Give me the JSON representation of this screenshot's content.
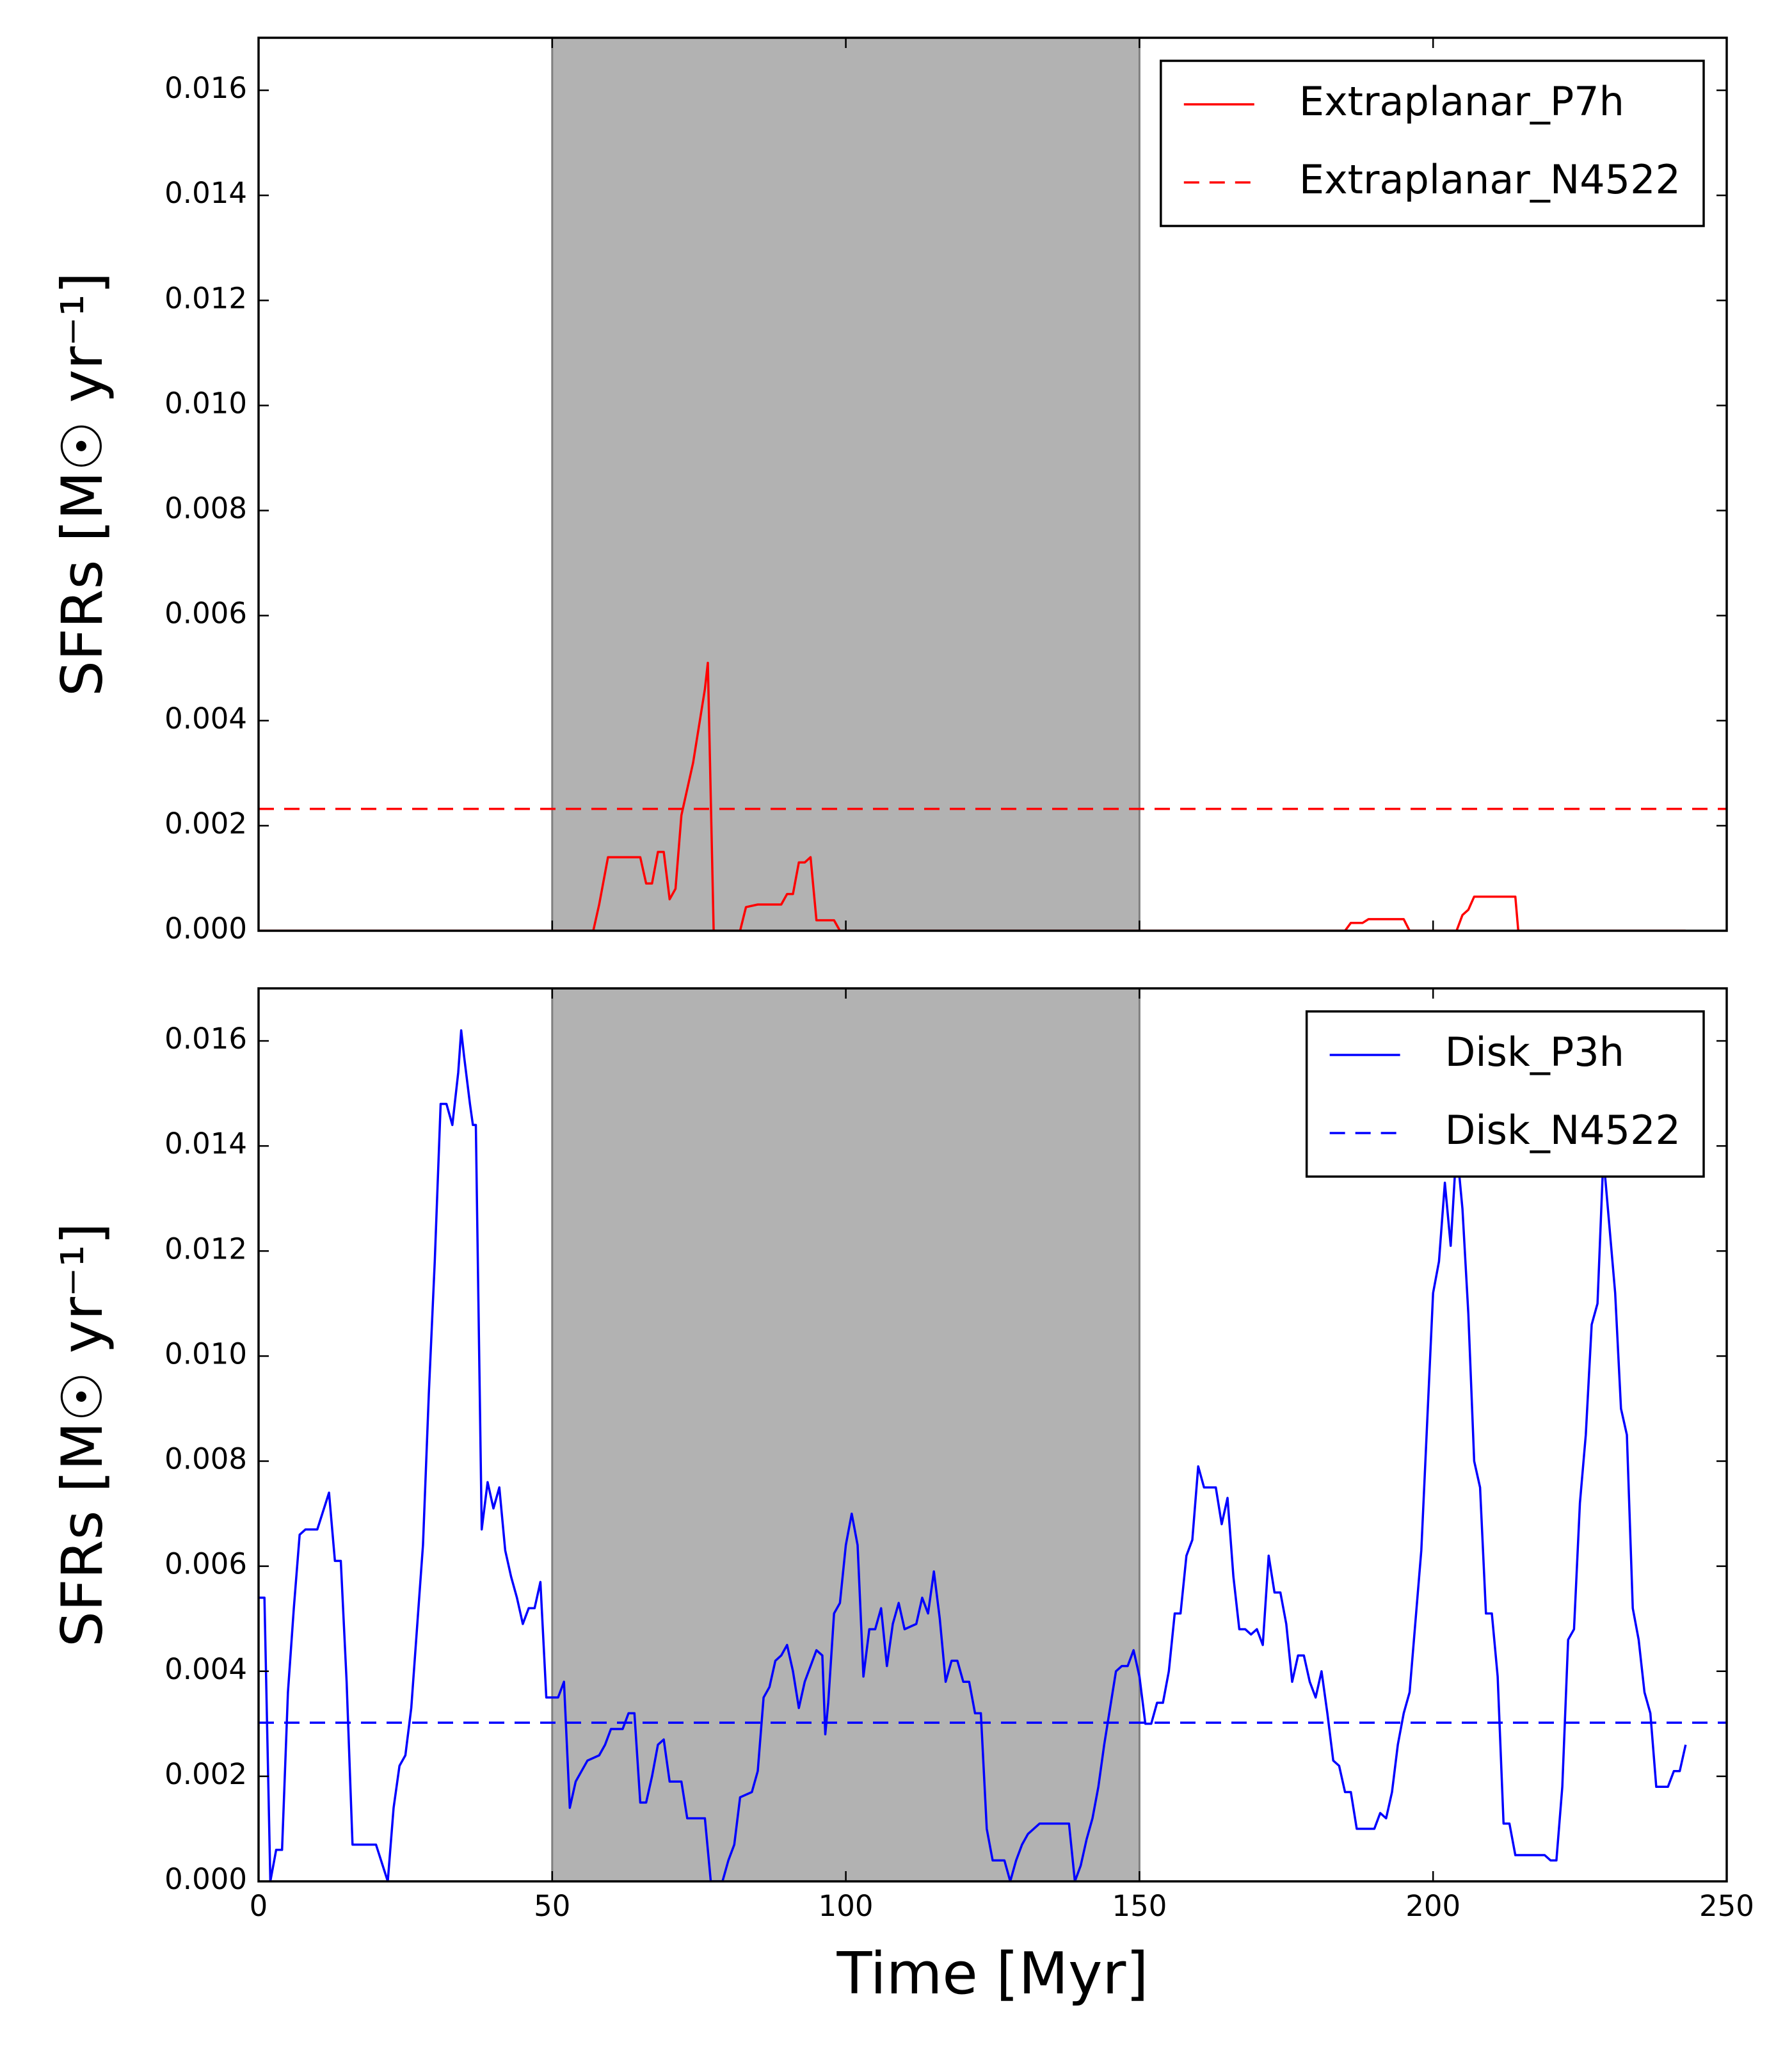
{
  "chart_data": [
    {
      "type": "line",
      "xlim": [
        0,
        250
      ],
      "ylim": [
        0,
        0.017
      ],
      "xticks": [
        0,
        50,
        100,
        150,
        200,
        250
      ],
      "xticklabels": false,
      "yticks": [
        {
          "value": 0,
          "label": "0.000"
        },
        0.002,
        0.004,
        0.006,
        0.008,
        {
          "value": 0.01,
          "label": "0.010"
        },
        0.012,
        0.014,
        0.016
      ],
      "ylabel": "SFRs [M☉ yr⁻¹]",
      "shade": {
        "xlim": [
          50,
          150
        ],
        "color": "#b2b2b2"
      },
      "legend": "upper right",
      "series": [
        {
          "name": "Extraplanar_P7h",
          "color": "#ff0000",
          "linestyle": "solid",
          "x": [
            0,
            57,
            58,
            59.5,
            65,
            66,
            67,
            68,
            69,
            70,
            71,
            72,
            74,
            76,
            76.5,
            77.5,
            82,
            83,
            85,
            89,
            90,
            91,
            92,
            93,
            94,
            95,
            98,
            99,
            185,
            186,
            188,
            189,
            195,
            196,
            204,
            205,
            206,
            207,
            214,
            214.5,
            243
          ],
          "values": [
            0,
            0,
            0.0005,
            0.0014,
            0.0014,
            0.0009,
            0.0009,
            0.0015,
            0.0015,
            0.0006,
            0.0008,
            0.0022,
            0.0032,
            0.0046,
            0.0051,
            0,
            0,
            0.00045,
            0.0005,
            0.0005,
            0.0007,
            0.0007,
            0.0013,
            0.0013,
            0.0014,
            0.0002,
            0.0002,
            0,
            0,
            0.00015,
            0.00015,
            0.00022,
            0.00022,
            0,
            0,
            0.0003,
            0.0004,
            0.00065,
            0.00065,
            0,
            0
          ]
        },
        {
          "name": "Extraplanar_N4522",
          "color": "#ff0000",
          "linestyle": "dashed",
          "hline": 0.00232
        }
      ]
    },
    {
      "type": "line",
      "xlim": [
        0,
        250
      ],
      "ylim": [
        0,
        0.017
      ],
      "xticks": [
        0,
        50,
        100,
        150,
        200,
        250
      ],
      "xticklabels": true,
      "yticks": [
        {
          "value": 0,
          "label": "0.000"
        },
        0.002,
        0.004,
        0.006,
        0.008,
        {
          "value": 0.01,
          "label": "0.010"
        },
        0.012,
        0.014,
        0.016
      ],
      "xlabel": "Time [Myr]",
      "ylabel": "SFRs [M☉ yr⁻¹]",
      "shade": {
        "xlim": [
          50,
          150
        ],
        "color": "#b2b2b2"
      },
      "legend": "upper right",
      "series": [
        {
          "name": "Disk_P3h",
          "color": "#0000ff",
          "linestyle": "solid",
          "x": [
            0,
            1,
            2,
            3,
            4,
            5,
            6,
            7,
            8,
            10,
            12,
            13,
            14,
            15,
            16,
            20,
            22,
            23,
            24,
            25,
            26,
            28,
            29,
            30,
            31,
            32,
            33,
            34,
            34.5,
            35,
            36,
            36.5,
            37,
            38,
            39,
            40,
            41,
            42,
            43,
            44,
            45,
            46,
            47,
            48,
            49,
            51,
            52,
            53,
            54,
            55,
            56,
            58,
            59,
            60,
            62,
            63,
            64,
            65,
            66,
            67,
            68,
            69,
            70,
            72,
            73,
            76,
            77,
            79,
            80,
            81,
            82,
            84,
            85,
            86,
            87,
            88,
            89,
            90,
            91,
            92,
            93,
            95,
            96,
            96.5,
            97,
            98,
            99,
            100,
            101,
            102,
            103,
            104,
            105,
            106,
            107,
            108,
            109,
            110,
            112,
            113,
            114,
            115,
            116,
            117,
            118,
            119,
            120,
            121,
            122,
            123,
            124,
            125,
            127,
            128,
            129,
            130,
            131,
            132,
            133,
            138,
            139,
            140,
            141,
            142,
            143,
            144,
            145,
            146,
            147,
            148,
            149,
            150,
            151,
            152,
            153,
            154,
            155,
            156,
            157,
            158,
            159,
            160,
            161,
            163,
            164,
            165,
            166,
            167,
            168,
            169,
            170,
            171,
            172,
            173,
            174,
            175,
            176,
            177,
            178,
            179,
            180,
            181,
            182,
            183,
            184,
            185,
            186,
            187,
            190,
            191,
            192,
            193,
            194,
            195,
            196,
            198,
            200,
            201,
            202,
            203,
            204,
            205,
            206,
            207,
            208,
            209,
            210,
            211,
            212,
            213,
            214,
            219,
            220,
            221,
            222,
            223,
            224,
            225,
            226,
            227,
            228,
            229,
            230,
            231,
            232,
            233,
            234,
            235,
            236,
            237,
            238,
            240,
            241,
            242,
            243
          ],
          "values": [
            0.0054,
            0.0054,
            0,
            0.0006,
            0.0006,
            0.0036,
            0.0052,
            0.0066,
            0.0067,
            0.0067,
            0.0074,
            0.0061,
            0.0061,
            0.0038,
            0.0007,
            0.0007,
            0,
            0.0014,
            0.0022,
            0.0024,
            0.0033,
            0.0064,
            0.0093,
            0.0118,
            0.0148,
            0.0148,
            0.0144,
            0.0154,
            0.0162,
            0.0157,
            0.0148,
            0.0144,
            0.0144,
            0.0067,
            0.0076,
            0.0071,
            0.0075,
            0.0063,
            0.0058,
            0.0054,
            0.0049,
            0.0052,
            0.0052,
            0.0057,
            0.0035,
            0.0035,
            0.0038,
            0.0014,
            0.0019,
            0.0021,
            0.0023,
            0.0024,
            0.0026,
            0.0029,
            0.0029,
            0.0032,
            0.0032,
            0.0015,
            0.0015,
            0.002,
            0.0026,
            0.0027,
            0.0019,
            0.0019,
            0.0012,
            0.0012,
            0,
            0,
            0.0004,
            0.0007,
            0.0016,
            0.0017,
            0.0021,
            0.0035,
            0.0037,
            0.0042,
            0.0043,
            0.0045,
            0.004,
            0.0033,
            0.0038,
            0.0044,
            0.0043,
            0.0028,
            0.0034,
            0.0051,
            0.0053,
            0.0064,
            0.007,
            0.0064,
            0.0039,
            0.0048,
            0.0048,
            0.0052,
            0.0041,
            0.0049,
            0.0053,
            0.0048,
            0.0049,
            0.0054,
            0.0051,
            0.0059,
            0.005,
            0.0038,
            0.0042,
            0.0042,
            0.0038,
            0.0038,
            0.0032,
            0.0032,
            0.001,
            0.0004,
            0.0004,
            0,
            0.0004,
            0.0007,
            0.0009,
            0.001,
            0.0011,
            0.0011,
            0,
            0.0003,
            0.0008,
            0.0012,
            0.0018,
            0.0026,
            0.0033,
            0.004,
            0.0041,
            0.0041,
            0.0044,
            0.0039,
            0.003,
            0.003,
            0.0034,
            0.0034,
            0.004,
            0.0051,
            0.0051,
            0.0062,
            0.0065,
            0.0079,
            0.0075,
            0.0075,
            0.0068,
            0.0073,
            0.0058,
            0.0048,
            0.0048,
            0.0047,
            0.0048,
            0.0045,
            0.0062,
            0.0055,
            0.0055,
            0.0049,
            0.0038,
            0.0043,
            0.0043,
            0.0038,
            0.0035,
            0.004,
            0.0032,
            0.0023,
            0.0022,
            0.0017,
            0.0017,
            0.001,
            0.001,
            0.0013,
            0.0012,
            0.0017,
            0.0026,
            0.0032,
            0.0036,
            0.0063,
            0.0112,
            0.0118,
            0.0133,
            0.0121,
            0.014,
            0.0128,
            0.0108,
            0.008,
            0.0075,
            0.0051,
            0.0051,
            0.0039,
            0.0011,
            0.0011,
            0.0005,
            0.0005,
            0.0004,
            0.0004,
            0.0018,
            0.0046,
            0.0048,
            0.0072,
            0.0085,
            0.0106,
            0.011,
            0.0138,
            0.0125,
            0.0112,
            0.009,
            0.0085,
            0.0052,
            0.0046,
            0.0036,
            0.0032,
            0.0018,
            0.0018,
            0.0021,
            0.0021,
            0.0026
          ]
        },
        {
          "name": "Disk_N4522",
          "color": "#0000ff",
          "linestyle": "dashed",
          "hline": 0.00302
        }
      ]
    }
  ]
}
